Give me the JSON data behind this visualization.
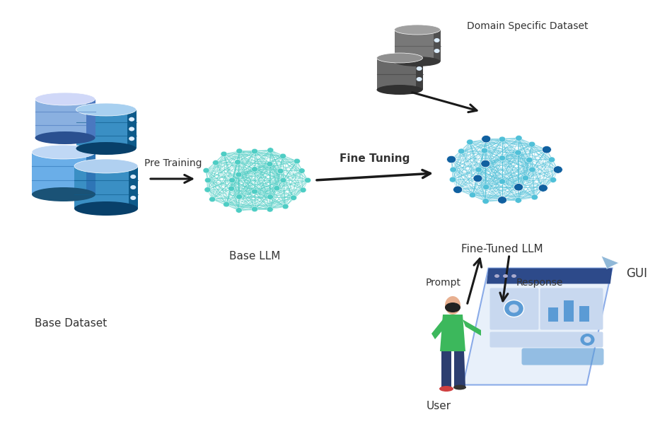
{
  "bg_color": "#ffffff",
  "labels": {
    "base_dataset": "Base Dataset",
    "domain_dataset": "Domain Specific Dataset",
    "base_llm": "Base LLM",
    "fine_tuned_llm": "Fine-Tuned LLM",
    "pre_training": "Pre Training",
    "fine_tuning": "Fine Tuning",
    "prompt": "Prompt",
    "response": "Response",
    "gui": "GUI",
    "user": "User"
  },
  "colors": {
    "db_top_light": "#b8d4f0",
    "db_body_blue": "#4a9fd4",
    "db_body_dark": "#1a6e9a",
    "db_side_dark": "#0d5070",
    "db_band": "#2a7fa8",
    "db_dot": "#ddeeff",
    "db_gray_top": "#a0a0a0",
    "db_gray_body": "#686868",
    "db_gray_dark": "#404040",
    "neural_edge": "#4ecdc4",
    "neural_node": "#4ecdc4",
    "neural_node_dark": "#1a6080",
    "arrow_color": "#1a1a1a",
    "text_color": "#333333",
    "gui_darkblue": "#2d4a8a",
    "gui_blue": "#5b9bd5",
    "gui_light": "#dce6f1",
    "gui_panel": "#c8d8ef",
    "user_green": "#3cb85c",
    "user_pants": "#2c3e70",
    "user_skin": "#e8b090",
    "user_hair": "#222222",
    "user_shoes": "#d04040",
    "paper_plane": "#90b8d8"
  },
  "font_sizes": {
    "label": 10,
    "arrow_label": 10,
    "fine_tuning": 11
  }
}
